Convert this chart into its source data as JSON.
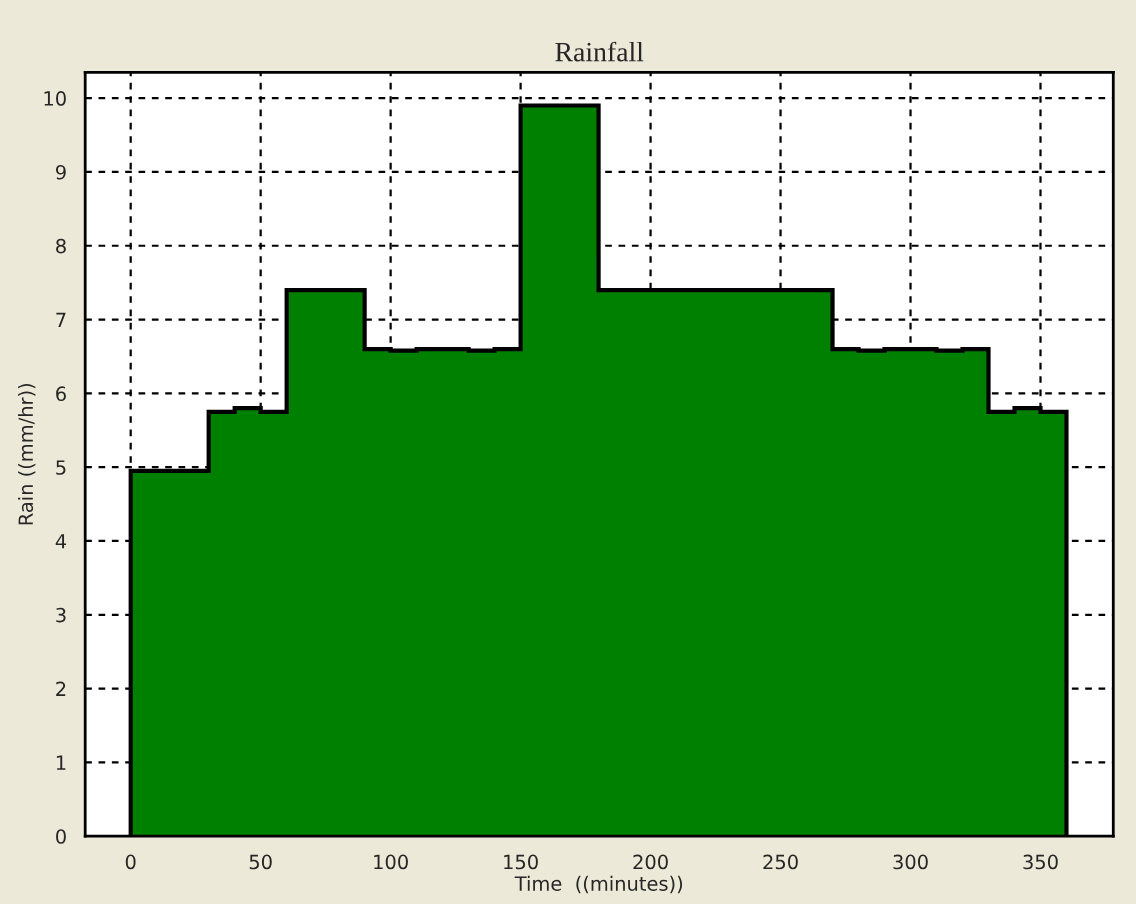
{
  "chart_data": {
    "type": "histogram",
    "title": "Rainfall",
    "xlabel": "Time  ((minutes))",
    "ylabel": "Rain ((mm/hr))",
    "bins": [
      0,
      10,
      20,
      30,
      40,
      50,
      60,
      70,
      80,
      90,
      100,
      110,
      120,
      130,
      140,
      150,
      160,
      170,
      180,
      190,
      200,
      210,
      220,
      230,
      240,
      250,
      260,
      270,
      280,
      290,
      300,
      310,
      320,
      330,
      340,
      350,
      360
    ],
    "values": [
      4.95,
      4.95,
      4.95,
      5.75,
      5.8,
      5.75,
      7.4,
      7.4,
      7.4,
      6.6,
      6.58,
      6.6,
      6.6,
      6.58,
      6.6,
      9.9,
      9.9,
      9.9,
      7.4,
      7.4,
      7.4,
      7.4,
      7.4,
      7.4,
      7.4,
      7.4,
      7.4,
      6.6,
      6.58,
      6.6,
      6.6,
      6.58,
      6.6,
      5.75,
      5.8,
      5.75
    ],
    "color": "#008000",
    "xlim": [
      -17.5,
      378
    ],
    "ylim": [
      0,
      10.35
    ],
    "xticks": [
      0,
      50,
      100,
      150,
      200,
      250,
      300,
      350
    ],
    "yticks": [
      0,
      1,
      2,
      3,
      4,
      5,
      6,
      7,
      8,
      9,
      10
    ],
    "grid": true
  }
}
